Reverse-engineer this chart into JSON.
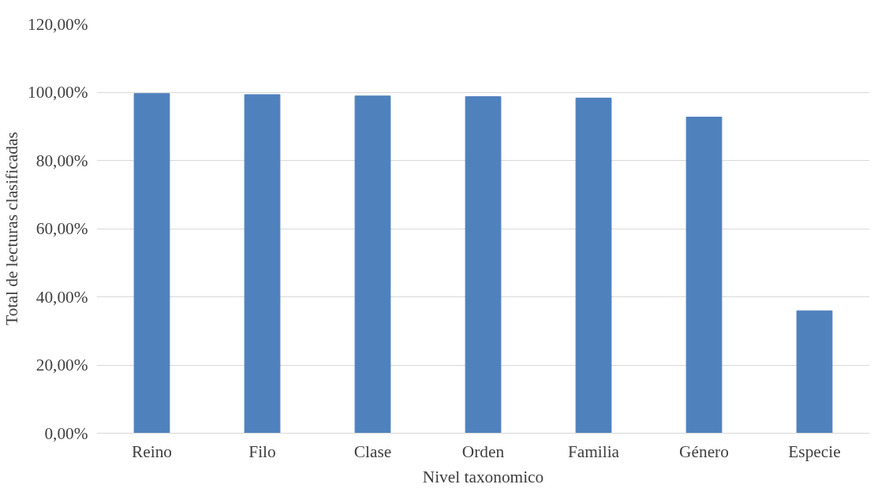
{
  "chart_data": {
    "type": "bar",
    "xlabel": "Nivel taxonomico",
    "ylabel": "Total de lecturas clasificadas",
    "categories": [
      "Reino",
      "Filo",
      "Clase",
      "Orden",
      "Familia",
      "Género",
      "Especie"
    ],
    "values": [
      99.6,
      99.3,
      98.9,
      98.7,
      98.3,
      92.7,
      35.9
    ],
    "color": "#4f81bd",
    "ylim": [
      0,
      120
    ],
    "yticks": [
      {
        "value": 0,
        "label": "0,00%"
      },
      {
        "value": 20,
        "label": "20,00%"
      },
      {
        "value": 40,
        "label": "40,00%"
      },
      {
        "value": 60,
        "label": "60,00%"
      },
      {
        "value": 80,
        "label": "80,00%"
      },
      {
        "value": 100,
        "label": "100,00%"
      },
      {
        "value": 120,
        "label": "120,00%"
      }
    ],
    "grid": "y"
  }
}
